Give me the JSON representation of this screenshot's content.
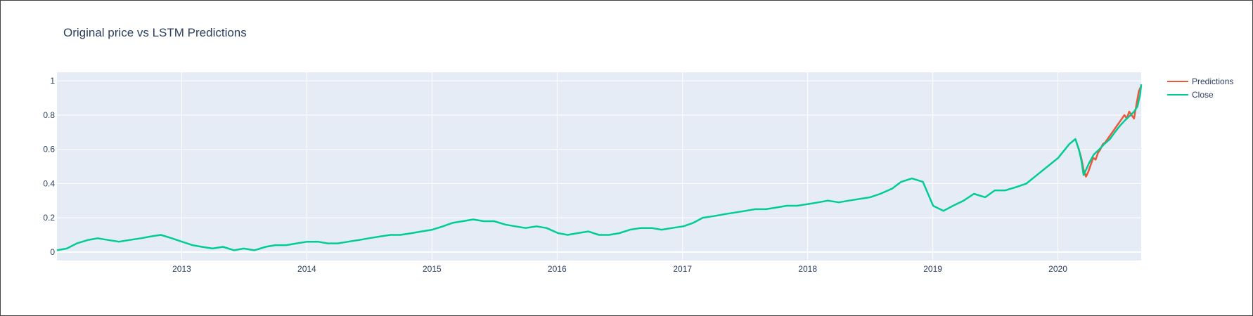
{
  "colors": {
    "plot_bg": "#e5ecf6",
    "grid": "#ffffff",
    "text": "#2a3f5f",
    "predictions": "#ef553b",
    "close": "#00cc96"
  },
  "chart_data": {
    "type": "line",
    "title": "Original price vs LSTM Predictions",
    "xlabel": "",
    "ylabel": "",
    "xlim": [
      "2012-01-03",
      "2020-08-31"
    ],
    "ylim": [
      -0.05,
      1.05
    ],
    "x_ticks": [
      "2013",
      "2014",
      "2015",
      "2016",
      "2017",
      "2018",
      "2019",
      "2020"
    ],
    "y_ticks": [
      "0",
      "0.2",
      "0.4",
      "0.6",
      "0.8",
      "1"
    ],
    "grid": true,
    "legend": "top-right",
    "series": [
      {
        "name": "Predictions",
        "color": "#ef553b",
        "x": [
          "2020-02-24",
          "2020-03-02",
          "2020-03-09",
          "2020-03-16",
          "2020-03-23",
          "2020-03-30",
          "2020-04-06",
          "2020-04-13",
          "2020-04-20",
          "2020-04-27",
          "2020-05-04",
          "2020-05-11",
          "2020-05-18",
          "2020-05-25",
          "2020-06-01",
          "2020-06-08",
          "2020-06-15",
          "2020-06-22",
          "2020-06-29",
          "2020-07-06",
          "2020-07-13",
          "2020-07-20",
          "2020-07-27",
          "2020-08-03",
          "2020-08-10",
          "2020-08-17",
          "2020-08-24",
          "2020-08-31"
        ],
        "y": [
          0.64,
          0.6,
          0.55,
          0.48,
          0.44,
          0.47,
          0.51,
          0.55,
          0.54,
          0.58,
          0.6,
          0.63,
          0.64,
          0.66,
          0.68,
          0.7,
          0.72,
          0.74,
          0.76,
          0.78,
          0.8,
          0.78,
          0.82,
          0.8,
          0.78,
          0.86,
          0.94,
          0.97
        ]
      },
      {
        "name": "Close",
        "color": "#00cc96",
        "x": [
          "2012-01-03",
          "2012-02-01",
          "2012-03-01",
          "2012-04-02",
          "2012-05-01",
          "2012-06-01",
          "2012-07-02",
          "2012-08-01",
          "2012-09-04",
          "2012-10-01",
          "2012-11-01",
          "2012-12-03",
          "2013-01-02",
          "2013-02-01",
          "2013-03-01",
          "2013-04-01",
          "2013-05-01",
          "2013-06-03",
          "2013-07-01",
          "2013-08-01",
          "2013-09-03",
          "2013-10-01",
          "2013-11-01",
          "2013-12-02",
          "2014-01-02",
          "2014-02-03",
          "2014-03-03",
          "2014-04-01",
          "2014-05-01",
          "2014-06-02",
          "2014-07-01",
          "2014-08-01",
          "2014-09-02",
          "2014-10-01",
          "2014-11-03",
          "2014-12-01",
          "2015-01-02",
          "2015-02-02",
          "2015-03-02",
          "2015-04-01",
          "2015-05-01",
          "2015-06-01",
          "2015-07-01",
          "2015-08-03",
          "2015-09-01",
          "2015-10-01",
          "2015-11-02",
          "2015-12-01",
          "2016-01-04",
          "2016-02-01",
          "2016-03-01",
          "2016-04-01",
          "2016-05-02",
          "2016-06-01",
          "2016-07-01",
          "2016-08-01",
          "2016-09-01",
          "2016-10-03",
          "2016-11-01",
          "2016-12-01",
          "2017-01-03",
          "2017-02-01",
          "2017-03-01",
          "2017-04-03",
          "2017-05-01",
          "2017-06-01",
          "2017-07-03",
          "2017-08-01",
          "2017-09-01",
          "2017-10-02",
          "2017-11-01",
          "2017-12-01",
          "2018-01-02",
          "2018-02-01",
          "2018-03-01",
          "2018-04-02",
          "2018-05-01",
          "2018-06-01",
          "2018-07-02",
          "2018-08-01",
          "2018-09-04",
          "2018-10-01",
          "2018-11-01",
          "2018-12-03",
          "2019-01-02",
          "2019-02-01",
          "2019-03-01",
          "2019-04-01",
          "2019-05-01",
          "2019-06-03",
          "2019-07-01",
          "2019-08-01",
          "2019-09-03",
          "2019-10-01",
          "2019-11-01",
          "2019-12-02",
          "2020-01-02",
          "2020-02-03",
          "2020-02-21",
          "2020-03-02",
          "2020-03-09",
          "2020-03-16",
          "2020-03-23",
          "2020-04-01",
          "2020-04-15",
          "2020-05-01",
          "2020-05-15",
          "2020-06-01",
          "2020-06-15",
          "2020-07-01",
          "2020-07-15",
          "2020-07-31",
          "2020-08-10",
          "2020-08-20",
          "2020-08-28",
          "2020-08-31"
        ],
        "y": [
          0.01,
          0.02,
          0.05,
          0.07,
          0.08,
          0.07,
          0.06,
          0.07,
          0.08,
          0.09,
          0.1,
          0.08,
          0.06,
          0.04,
          0.03,
          0.02,
          0.03,
          0.01,
          0.02,
          0.01,
          0.03,
          0.04,
          0.04,
          0.05,
          0.06,
          0.06,
          0.05,
          0.05,
          0.06,
          0.07,
          0.08,
          0.09,
          0.1,
          0.1,
          0.11,
          0.12,
          0.13,
          0.15,
          0.17,
          0.18,
          0.19,
          0.18,
          0.18,
          0.16,
          0.15,
          0.14,
          0.15,
          0.14,
          0.11,
          0.1,
          0.11,
          0.12,
          0.1,
          0.1,
          0.11,
          0.13,
          0.14,
          0.14,
          0.13,
          0.14,
          0.15,
          0.17,
          0.2,
          0.21,
          0.22,
          0.23,
          0.24,
          0.25,
          0.25,
          0.26,
          0.27,
          0.27,
          0.28,
          0.29,
          0.3,
          0.29,
          0.3,
          0.31,
          0.32,
          0.34,
          0.37,
          0.41,
          0.43,
          0.41,
          0.27,
          0.24,
          0.27,
          0.3,
          0.34,
          0.32,
          0.36,
          0.36,
          0.38,
          0.4,
          0.45,
          0.5,
          0.55,
          0.63,
          0.66,
          0.6,
          0.54,
          0.45,
          0.48,
          0.52,
          0.57,
          0.6,
          0.63,
          0.66,
          0.7,
          0.74,
          0.77,
          0.8,
          0.82,
          0.85,
          0.92,
          0.98
        ]
      }
    ]
  }
}
